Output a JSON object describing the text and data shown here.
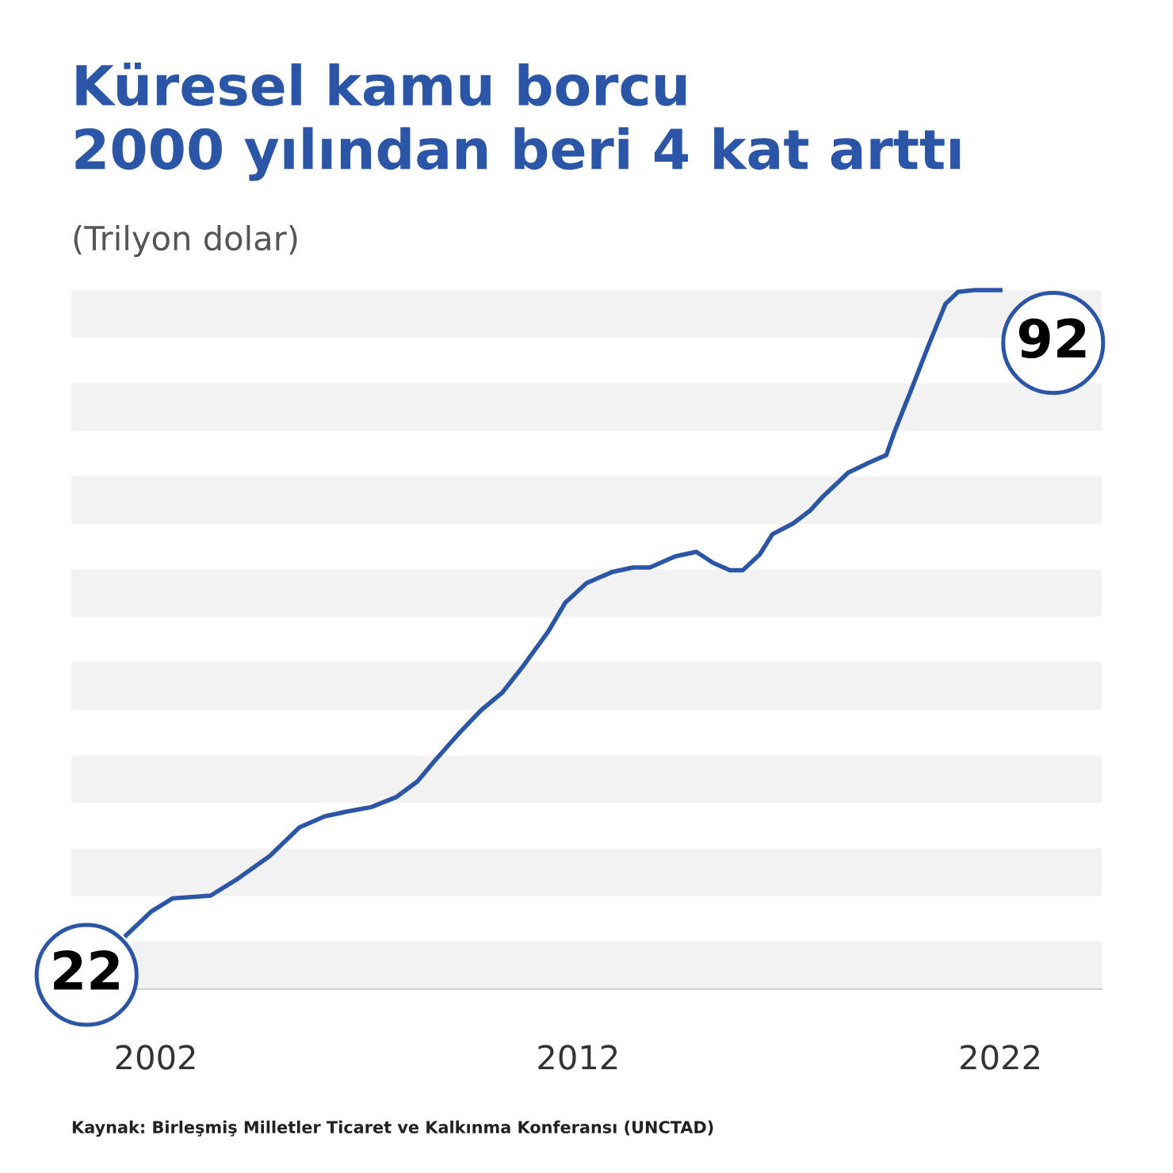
{
  "chart_data": {
    "type": "line",
    "title": "Küresel kamu borcu\n2000 yılından beri 4 kat arttı",
    "subtitle": "(Trilyon dolar)",
    "annotations": [
      "Kaynak: Birleşmiş Milletler Ticaret ve Kalkınma Konferansı (UNCTAD)"
    ],
    "series": [
      {
        "color": "#2b55a6",
        "x": [
          2001.3,
          2001.9,
          2002.4,
          2003.3,
          2003.9,
          2004.7,
          2005.4,
          2006.0,
          2006.5,
          2007.1,
          2007.7,
          2008.2,
          2008.6,
          2009.2,
          2009.7,
          2010.2,
          2010.7,
          2011.3,
          2011.7,
          2012.2,
          2012.8,
          2013.3,
          2013.7,
          2014.3,
          2014.8,
          2015.2,
          2015.6,
          2015.9,
          2016.3,
          2016.6,
          2017.1,
          2017.5,
          2017.8,
          2018.4,
          2018.9,
          2019.3,
          2019.5,
          2019.9,
          2020.3,
          2020.7,
          2021.0,
          2021.4,
          2022.0
        ],
        "values": [
          22,
          24.6,
          26.0,
          26.3,
          28.0,
          30.6,
          33.7,
          34.9,
          35.4,
          35.9,
          37.0,
          38.7,
          40.9,
          44.0,
          46.4,
          48.3,
          51.2,
          55.0,
          58.1,
          60.2,
          61.4,
          61.9,
          61.9,
          63.1,
          63.6,
          62.4,
          61.6,
          61.6,
          63.3,
          65.5,
          66.7,
          68.1,
          69.6,
          72.2,
          73.3,
          74.1,
          76.7,
          81.3,
          86.0,
          90.5,
          91.8,
          92.0,
          92
        ],
        "value_labels": [
          "22",
          null,
          null,
          null,
          null,
          null,
          null,
          null,
          null,
          null,
          null,
          null,
          null,
          null,
          null,
          null,
          null,
          null,
          null,
          null,
          null,
          null,
          null,
          null,
          null,
          null,
          null,
          null,
          null,
          null,
          null,
          null,
          null,
          null,
          null,
          null,
          null,
          null,
          null,
          null,
          null,
          null,
          "92"
        ]
      }
    ],
    "xlim": [
      2000,
      2024.4
    ],
    "xticks": [
      2002,
      2012,
      2022
    ],
    "tick_labels": "x",
    "marker": "none",
    "line_style": "solid"
  }
}
